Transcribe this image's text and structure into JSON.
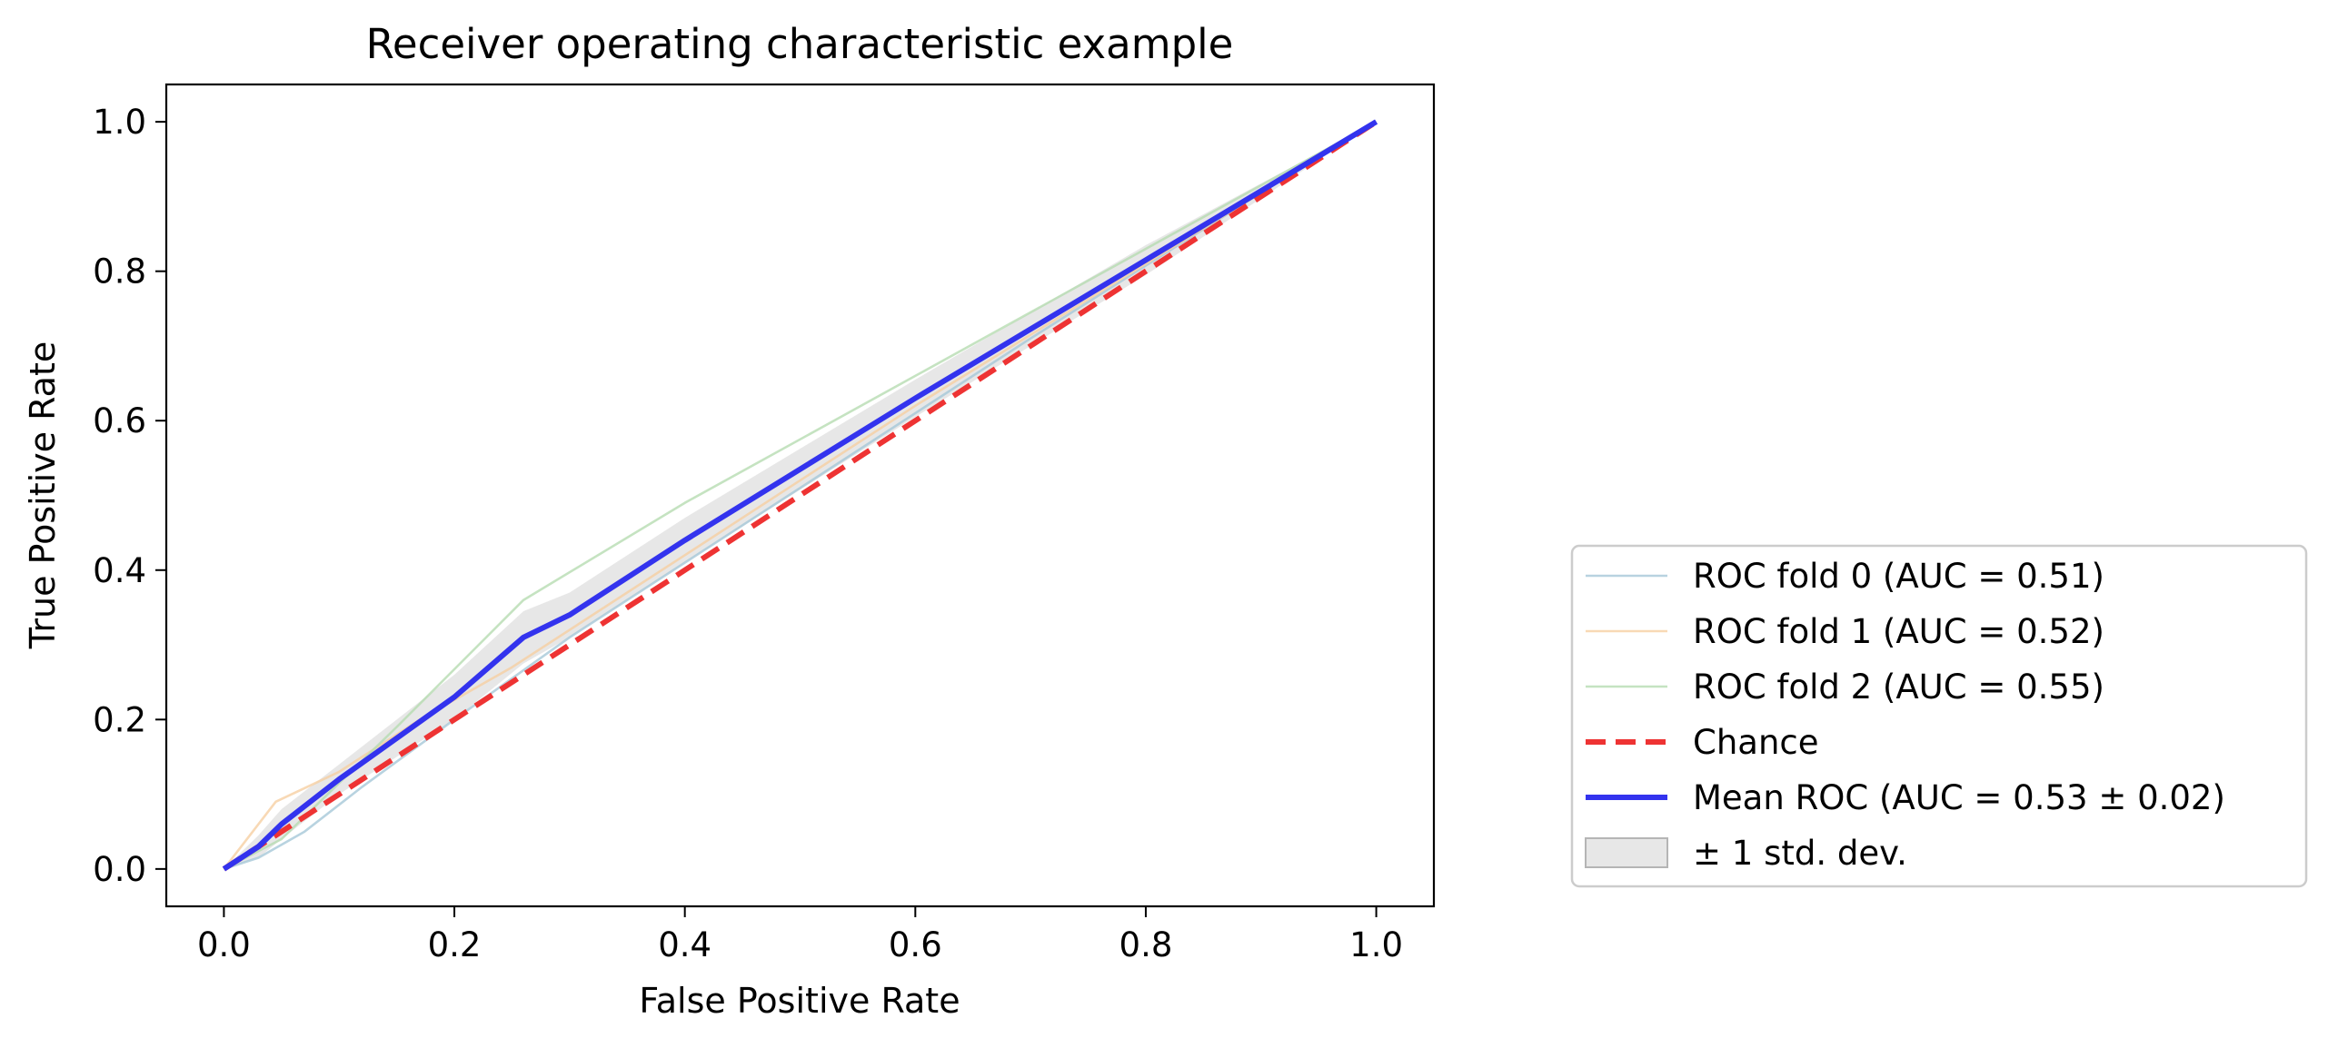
{
  "chart_data": {
    "type": "line",
    "title": "Receiver operating characteristic example",
    "xlabel": "False Positive Rate",
    "ylabel": "True Positive Rate",
    "xlim": [
      -0.05,
      1.05
    ],
    "ylim": [
      -0.05,
      1.05
    ],
    "xticks": [
      0.0,
      0.2,
      0.4,
      0.6,
      0.8,
      1.0
    ],
    "yticks": [
      0.0,
      0.2,
      0.4,
      0.6,
      0.8,
      1.0
    ],
    "xtick_labels": [
      "0.0",
      "0.2",
      "0.4",
      "0.6",
      "0.8",
      "1.0"
    ],
    "ytick_labels": [
      "0.0",
      "0.2",
      "0.4",
      "0.6",
      "0.8",
      "1.0"
    ],
    "grid": false,
    "legend_position": "outside right, lower",
    "series": [
      {
        "name": "ROC fold 0 (AUC = 0.51)",
        "style": "solid-thin",
        "color": "#a6c8d8",
        "opacity": 0.8,
        "x": [
          0.0,
          0.03,
          0.07,
          0.12,
          0.2,
          0.3,
          0.5,
          0.7,
          0.9,
          1.0
        ],
        "y": [
          0.0,
          0.015,
          0.05,
          0.11,
          0.2,
          0.31,
          0.51,
          0.71,
          0.905,
          1.0
        ]
      },
      {
        "name": "ROC fold 1 (AUC = 0.52)",
        "style": "solid-thin",
        "color": "#f6cfa3",
        "opacity": 0.8,
        "x": [
          0.0,
          0.045,
          0.1,
          0.17,
          0.25,
          0.4,
          0.6,
          0.8,
          1.0
        ],
        "y": [
          0.0,
          0.09,
          0.13,
          0.2,
          0.27,
          0.42,
          0.62,
          0.81,
          1.0
        ]
      },
      {
        "name": "ROC fold 2 (AUC = 0.55)",
        "style": "solid-thin",
        "color": "#b7dcb2",
        "opacity": 0.8,
        "x": [
          0.0,
          0.05,
          0.15,
          0.26,
          0.4,
          0.6,
          0.8,
          1.0
        ],
        "y": [
          0.0,
          0.04,
          0.19,
          0.36,
          0.49,
          0.66,
          0.83,
          1.0
        ]
      },
      {
        "name": "Chance",
        "style": "dashed",
        "color": "#ee3333",
        "opacity": 1,
        "x": [
          0.0,
          1.0
        ],
        "y": [
          0.0,
          1.0
        ]
      },
      {
        "name": "Mean ROC (AUC = 0.53 ± 0.02)",
        "style": "solid-thick",
        "color": "#3333ee",
        "opacity": 1,
        "x": [
          0.0,
          0.03,
          0.05,
          0.1,
          0.2,
          0.26,
          0.3,
          0.4,
          0.6,
          0.8,
          1.0
        ],
        "y": [
          0.0,
          0.03,
          0.06,
          0.12,
          0.23,
          0.31,
          0.34,
          0.44,
          0.63,
          0.815,
          1.0
        ]
      }
    ],
    "band": {
      "name": "± 1 std. dev.",
      "color": "#bbbbbb",
      "opacity": 0.35,
      "x": [
        0.0,
        0.03,
        0.05,
        0.1,
        0.2,
        0.26,
        0.3,
        0.4,
        0.6,
        0.8,
        1.0
      ],
      "upper": [
        0.0,
        0.045,
        0.08,
        0.14,
        0.26,
        0.345,
        0.37,
        0.47,
        0.655,
        0.835,
        1.0
      ],
      "lower": [
        0.0,
        0.015,
        0.04,
        0.1,
        0.2,
        0.275,
        0.31,
        0.41,
        0.605,
        0.795,
        1.0
      ]
    }
  }
}
